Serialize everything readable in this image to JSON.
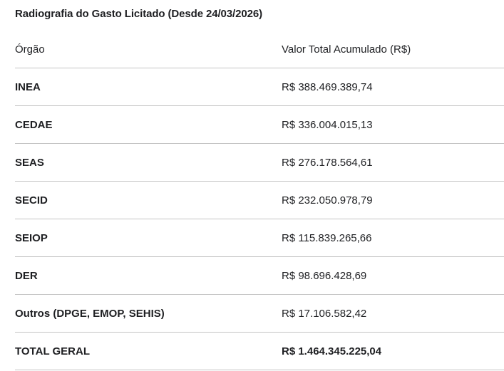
{
  "title": "Radiografia do Gasto Licitado (Desde 24/03/2026)",
  "table": {
    "columns": [
      "Órgão",
      "Valor Total Acumulado (R$)"
    ],
    "rows": [
      {
        "orgao": "INEA",
        "valor": "R$ 388.469.389,74"
      },
      {
        "orgao": "CEDAE",
        "valor": "R$ 336.004.015,13"
      },
      {
        "orgao": "SEAS",
        "valor": "R$ 276.178.564,61"
      },
      {
        "orgao": "SECID",
        "valor": "R$ 232.050.978,79"
      },
      {
        "orgao": "SEIOP",
        "valor": "R$ 115.839.265,66"
      },
      {
        "orgao": "DER",
        "valor": "R$ 98.696.428,69"
      },
      {
        "orgao": "Outros (DPGE, EMOP, SEHIS)",
        "valor": "R$ 17.106.582,42"
      }
    ],
    "total_row": {
      "orgao": "TOTAL GERAL",
      "valor": "R$ 1.464.345.225,04"
    }
  },
  "colors": {
    "text": "#1e1f22",
    "divider": "#c4c4c4",
    "background": "#ffffff"
  },
  "chart_data": {
    "type": "table",
    "title": "Radiografia do Gasto Licitado (Desde 24/03/2026)",
    "columns": [
      "Órgão",
      "Valor Total Acumulado (R$)"
    ],
    "categories": [
      "INEA",
      "CEDAE",
      "SEAS",
      "SECID",
      "SEIOP",
      "DER",
      "Outros (DPGE, EMOP, SEHIS)"
    ],
    "values": [
      388469389.74,
      336004015.13,
      276178564.61,
      232050978.79,
      115839265.66,
      98696428.69,
      17106582.42
    ],
    "total_label": "TOTAL GERAL",
    "total_value": 1464345225.04,
    "currency": "BRL"
  }
}
